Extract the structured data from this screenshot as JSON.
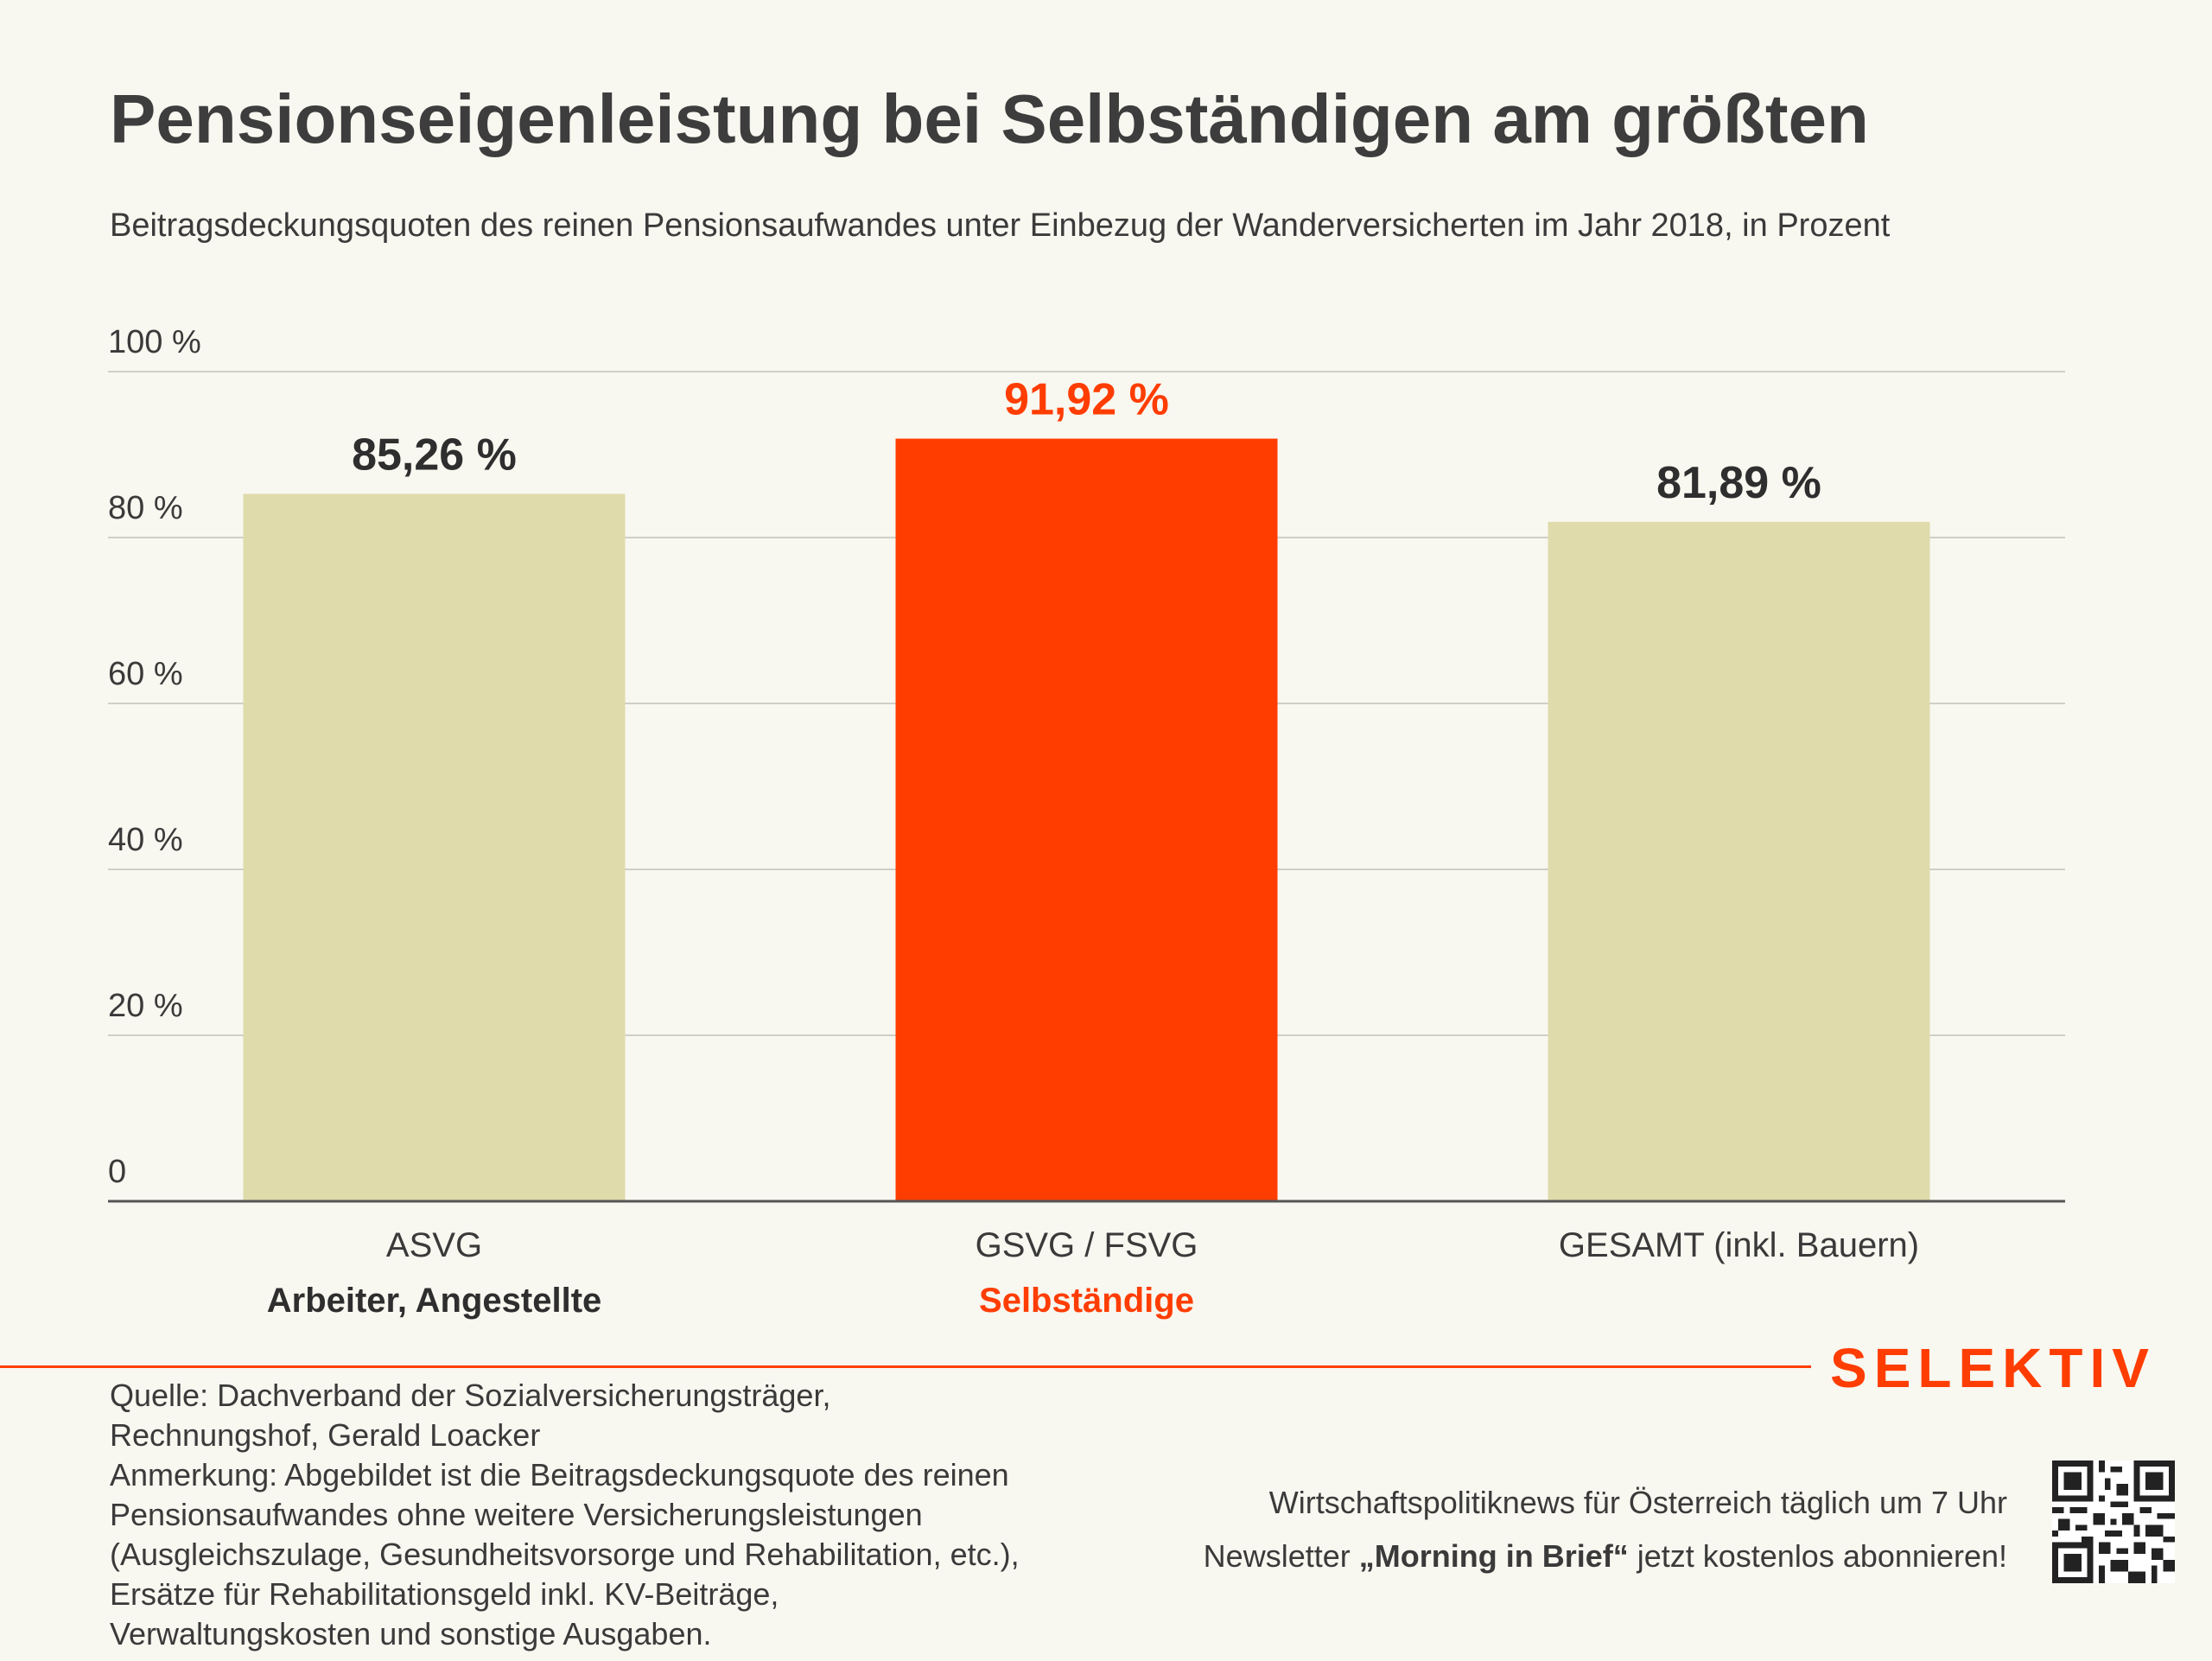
{
  "header": {
    "title": "Pensionseigenleistung bei Selbständigen am größten",
    "subtitle": "Beitragsdeckungsquoten des reinen Pensionsaufwandes unter Einbezug der Wanderversicherten im Jahr 2018, in Prozent"
  },
  "chart_data": {
    "type": "bar",
    "categories": [
      "ASVG",
      "GSVG / FSVG",
      "GESAMT (inkl. Bauern)"
    ],
    "category_sublabels": [
      "Arbeiter, Angestellte",
      "Selbständige",
      ""
    ],
    "values": [
      85.26,
      91.92,
      81.89
    ],
    "value_labels": [
      "85,26 %",
      "91,92 %",
      "81,89 %"
    ],
    "highlight_index": 1,
    "ylim": [
      0,
      100
    ],
    "yticks": [
      0,
      20,
      40,
      60,
      80,
      100
    ],
    "ytick_labels": [
      "0",
      "20 %",
      "40 %",
      "60 %",
      "80 %",
      "100 %"
    ],
    "grid": true,
    "colors": {
      "bar": "#dfdbab",
      "highlight": "#ff3d00",
      "label": "#2e2e2e",
      "grid": "#cfcfc8",
      "axis": "#555555"
    }
  },
  "footer": {
    "notes": [
      "Quelle: Dachverband der Sozialversicherungsträger,",
      "Rechnungshof, Gerald Loacker",
      "Anmerkung: Abgebildet ist die Beitragsdeckungsquote des reinen",
      "Pensionsaufwandes ohne weitere Versicherungsleistungen",
      "(Ausgleichszulage, Gesundheitsvorsorge und Rehabilitation, etc.),",
      "Ersätze für Rehabilitationsgeld inkl. KV-Beiträge,",
      "Verwaltungskosten und sonstige Ausgaben."
    ],
    "brand": "SELEKTIV",
    "promo_line1": "Wirtschaftspolitiknews für Österreich täglich um 7 Uhr",
    "promo_line2_prefix": "Newsletter ",
    "promo_line2_bold": "„Morning in Brief“",
    "promo_line2_suffix": " jetzt kostenlos abonnieren!",
    "qr_icon": "qr-code-icon"
  }
}
